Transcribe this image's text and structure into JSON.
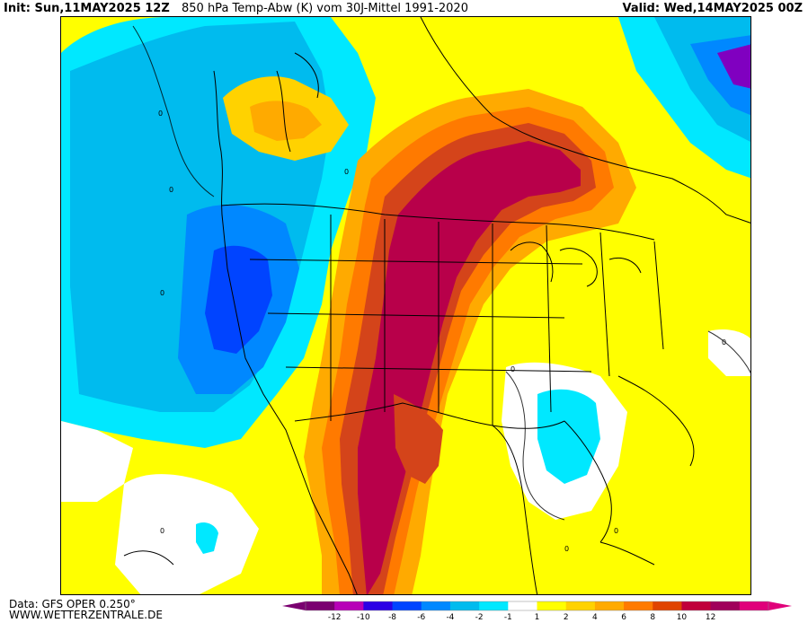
{
  "header": {
    "init": "Init: Sun,11MAY2025 12Z",
    "title": "850 hPa Temp-Abw (K) vom 30J-Mittel 1991-2020",
    "valid": "Valid: Wed,14MAY2025 00Z"
  },
  "footer": {
    "data": "Data: GFS OPER 0.250°",
    "site": "WWW.WETTERZENTRALE.DE"
  },
  "legend": {
    "ticks": [
      "-12",
      "-10",
      "-8",
      "-6",
      "-4",
      "-2",
      "-1",
      "1",
      "2",
      "4",
      "6",
      "8",
      "10",
      "12"
    ],
    "colors": [
      "#7a0070",
      "#b700b7",
      "#2b00e5",
      "#0044ff",
      "#0088ff",
      "#00bbee",
      "#00e8ff",
      "#ffffff",
      "#ffff00",
      "#ffd200",
      "#ffaa00",
      "#ff7a00",
      "#e04400",
      "#c0003a",
      "#a0005a",
      "#e0007a"
    ]
  },
  "map_colors": {
    "background": "#ffff00",
    "pos1": "#ffd200",
    "pos2": "#ffaa00",
    "pos3": "#ff7a00",
    "pos4": "#d4441a",
    "pos5": "#b8004a",
    "neg1": "#00e8ff",
    "neg2": "#00bbee",
    "neg3": "#0088ff",
    "neg4": "#0044ff",
    "neg5": "#8000c0",
    "neutral": "#ffffff"
  }
}
